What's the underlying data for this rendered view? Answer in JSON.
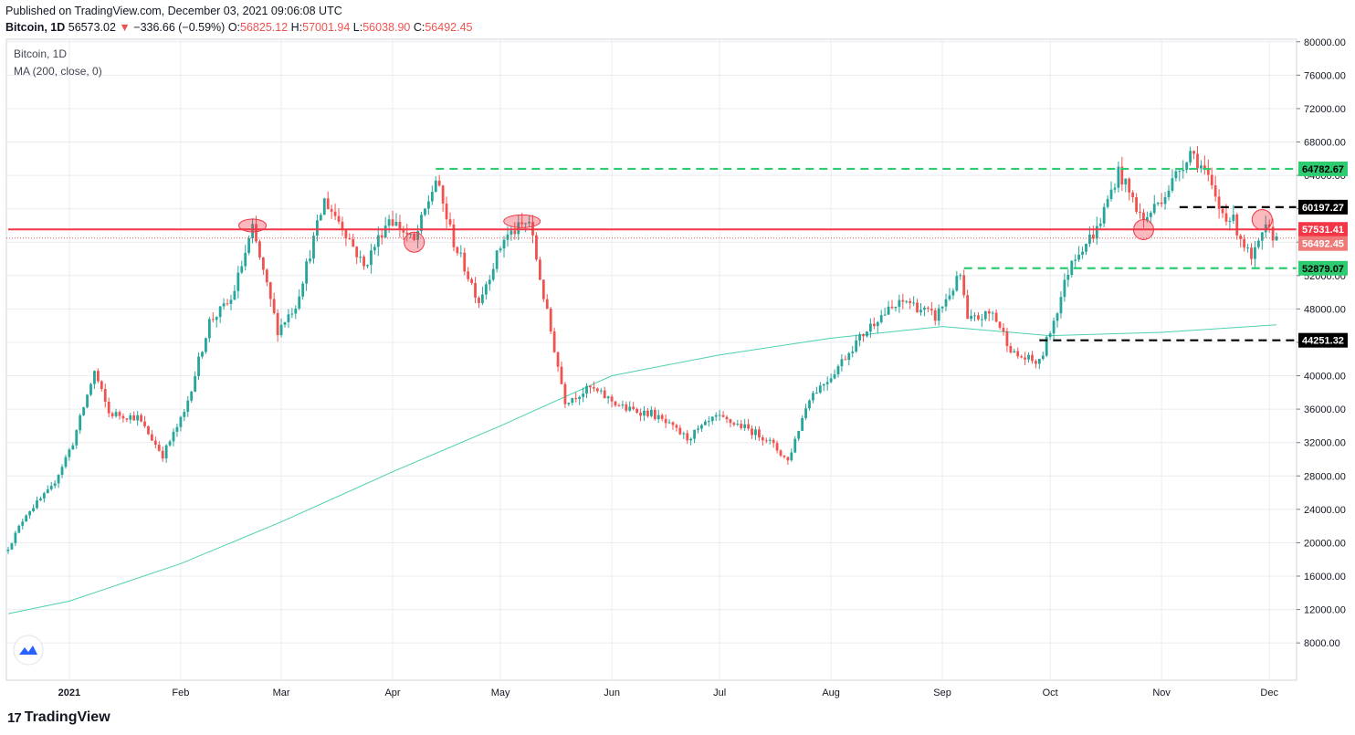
{
  "header": {
    "published": "Published on TradingView.com, December 03, 2021 09:06:08 UTC",
    "symbol": "Bitcoin, 1D",
    "last": "56573.02",
    "change_arrow": "▼",
    "change": "−336.66 (−0.59%)",
    "o_label": "O:",
    "o": "56825.12",
    "h_label": "H:",
    "h": "57001.94",
    "l_label": "L:",
    "l": "56038.90",
    "c_label": "C:",
    "c": "56492.45"
  },
  "legend": {
    "title": "Bitcoin, 1D",
    "indicator": "MA (200, close, 0)"
  },
  "footer": {
    "brand": "TradingView"
  },
  "colors": {
    "up": "#26a69a",
    "down": "#ef5350",
    "ma": "#4dd0b0",
    "support_green": "#2ecc71",
    "resistance_red": "#f23645",
    "black_line": "#000000",
    "grid": "#e9ecef"
  },
  "chart_data": {
    "type": "candlestick",
    "y_axis_ticks": [
      "80000.00",
      "76000.00",
      "72000.00",
      "68000.00",
      "64000.00",
      "60000.00",
      "56000.00",
      "52000.00",
      "48000.00",
      "44000.00",
      "40000.00",
      "36000.00",
      "32000.00",
      "28000.00",
      "24000.00",
      "20000.00",
      "16000.00",
      "12000.00",
      "8000.00"
    ],
    "x_axis_ticks": [
      "2021",
      "Feb",
      "Mar",
      "Apr",
      "May",
      "Jun",
      "Jul",
      "Aug",
      "Sep",
      "Oct",
      "Nov",
      "Dec"
    ],
    "ylim": [
      4500,
      80000
    ],
    "price_labels": [
      {
        "value": 64782.67,
        "text": "64782.67",
        "color": "#2ecc71",
        "text_color": "#000000"
      },
      {
        "value": 60197.27,
        "text": "60197.27",
        "color": "#000000",
        "text_color": "#ffffff"
      },
      {
        "value": 57531.41,
        "text": "57531.41",
        "color": "#f23645",
        "text_color": "#ffffff"
      },
      {
        "value": 56492.45,
        "text": "56492.45",
        "color": "#ef7a7a",
        "text_color": "#ffffff"
      },
      {
        "value": 52879.07,
        "text": "52879.07",
        "color": "#2ecc71",
        "text_color": "#000000"
      },
      {
        "value": 44251.32,
        "text": "44251.32",
        "color": "#000000",
        "text_color": "#ffffff"
      }
    ],
    "horizontal_lines": [
      {
        "value": 64782.67,
        "style": "dashed",
        "color": "#2ecc71",
        "from_date": "2021-04-13",
        "to_date": "2021-12-03"
      },
      {
        "value": 60197.27,
        "style": "dashed",
        "color": "#000000",
        "from_date": "2021-11-06",
        "to_date": "2021-12-03"
      },
      {
        "value": 57531.41,
        "style": "solid",
        "color": "#f23645",
        "from_date": "2020-12-15",
        "to_date": "2021-12-03"
      },
      {
        "value": 52879.07,
        "style": "dashed",
        "color": "#2ecc71",
        "from_date": "2021-09-07",
        "to_date": "2021-12-03"
      },
      {
        "value": 44251.32,
        "style": "dashed",
        "color": "#000000",
        "from_date": "2021-09-28",
        "to_date": "2021-12-03"
      }
    ],
    "highlight_circles": [
      {
        "date": "2021-02-21",
        "value": 58000
      },
      {
        "date": "2021-04-07",
        "value": 56000
      },
      {
        "date": "2021-05-07",
        "value": 58500
      },
      {
        "date": "2021-10-27",
        "value": 57500
      },
      {
        "date": "2021-11-29",
        "value": 58700
      }
    ],
    "ma200": [
      {
        "date": "2020-12-15",
        "value": 11500
      },
      {
        "date": "2021-01-01",
        "value": 13000
      },
      {
        "date": "2021-02-01",
        "value": 17500
      },
      {
        "date": "2021-03-01",
        "value": 22500
      },
      {
        "date": "2021-04-01",
        "value": 28500
      },
      {
        "date": "2021-05-01",
        "value": 34000
      },
      {
        "date": "2021-06-01",
        "value": 40000
      },
      {
        "date": "2021-07-01",
        "value": 42500
      },
      {
        "date": "2021-08-01",
        "value": 44500
      },
      {
        "date": "2021-09-01",
        "value": 45900
      },
      {
        "date": "2021-10-01",
        "value": 44800
      },
      {
        "date": "2021-11-01",
        "value": 45200
      },
      {
        "date": "2021-12-03",
        "value": 46100
      }
    ],
    "close_series": [
      {
        "date": "2020-12-15",
        "value": 19400
      },
      {
        "date": "2020-12-20",
        "value": 23500
      },
      {
        "date": "2020-12-27",
        "value": 26500
      },
      {
        "date": "2021-01-02",
        "value": 32000
      },
      {
        "date": "2021-01-08",
        "value": 40500
      },
      {
        "date": "2021-01-12",
        "value": 35500
      },
      {
        "date": "2021-01-20",
        "value": 35000
      },
      {
        "date": "2021-01-27",
        "value": 30500
      },
      {
        "date": "2021-02-02",
        "value": 35500
      },
      {
        "date": "2021-02-09",
        "value": 46500
      },
      {
        "date": "2021-02-15",
        "value": 49000
      },
      {
        "date": "2021-02-21",
        "value": 57500
      },
      {
        "date": "2021-02-28",
        "value": 45500
      },
      {
        "date": "2021-03-05",
        "value": 48500
      },
      {
        "date": "2021-03-13",
        "value": 61000
      },
      {
        "date": "2021-03-18",
        "value": 58000
      },
      {
        "date": "2021-03-24",
        "value": 53000
      },
      {
        "date": "2021-03-31",
        "value": 59000
      },
      {
        "date": "2021-04-07",
        "value": 56000
      },
      {
        "date": "2021-04-13",
        "value": 63500
      },
      {
        "date": "2021-04-18",
        "value": 56000
      },
      {
        "date": "2021-04-25",
        "value": 49000
      },
      {
        "date": "2021-05-02",
        "value": 56500
      },
      {
        "date": "2021-05-09",
        "value": 58500
      },
      {
        "date": "2021-05-13",
        "value": 49500
      },
      {
        "date": "2021-05-19",
        "value": 37000
      },
      {
        "date": "2021-05-26",
        "value": 38500
      },
      {
        "date": "2021-06-05",
        "value": 36000
      },
      {
        "date": "2021-06-12",
        "value": 35500
      },
      {
        "date": "2021-06-22",
        "value": 32500
      },
      {
        "date": "2021-06-30",
        "value": 35000
      },
      {
        "date": "2021-07-07",
        "value": 34000
      },
      {
        "date": "2021-07-14",
        "value": 32500
      },
      {
        "date": "2021-07-20",
        "value": 29800
      },
      {
        "date": "2021-07-26",
        "value": 37500
      },
      {
        "date": "2021-08-01",
        "value": 40000
      },
      {
        "date": "2021-08-07",
        "value": 43500
      },
      {
        "date": "2021-08-14",
        "value": 47000
      },
      {
        "date": "2021-08-22",
        "value": 49000
      },
      {
        "date": "2021-08-30",
        "value": 47000
      },
      {
        "date": "2021-09-06",
        "value": 52000
      },
      {
        "date": "2021-09-08",
        "value": 46500
      },
      {
        "date": "2021-09-15",
        "value": 47500
      },
      {
        "date": "2021-09-21",
        "value": 42500
      },
      {
        "date": "2021-09-28",
        "value": 41500
      },
      {
        "date": "2021-10-03",
        "value": 48000
      },
      {
        "date": "2021-10-07",
        "value": 54000
      },
      {
        "date": "2021-10-14",
        "value": 57500
      },
      {
        "date": "2021-10-20",
        "value": 64500
      },
      {
        "date": "2021-10-27",
        "value": 58500
      },
      {
        "date": "2021-11-03",
        "value": 62500
      },
      {
        "date": "2021-11-09",
        "value": 67000
      },
      {
        "date": "2021-11-13",
        "value": 64500
      },
      {
        "date": "2021-11-17",
        "value": 60000
      },
      {
        "date": "2021-11-21",
        "value": 58500
      },
      {
        "date": "2021-11-26",
        "value": 53800
      },
      {
        "date": "2021-11-30",
        "value": 57500
      },
      {
        "date": "2021-12-03",
        "value": 56492
      }
    ]
  }
}
